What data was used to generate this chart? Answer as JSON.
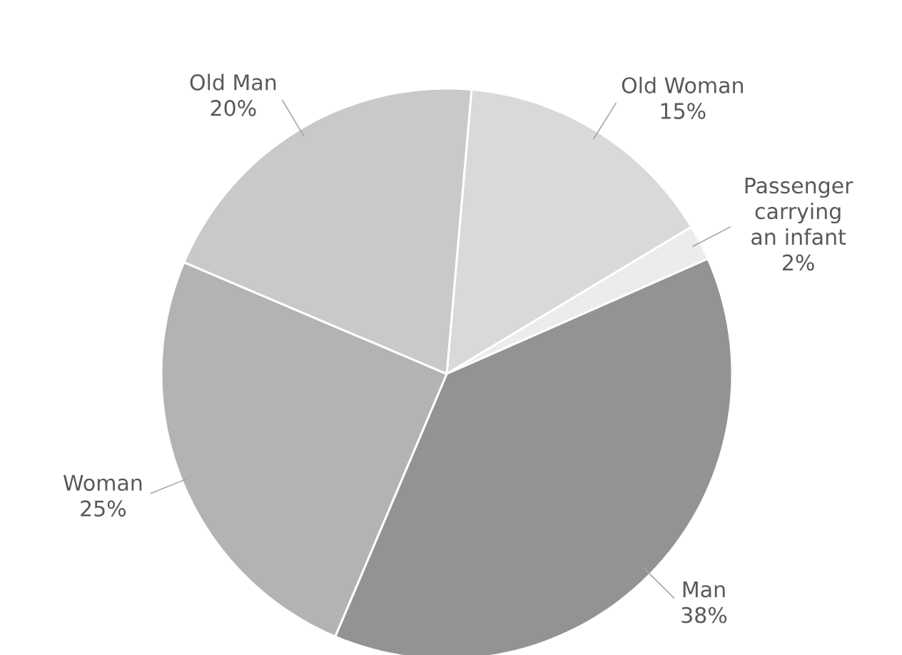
{
  "chart_data": {
    "type": "pie",
    "categories": [
      "Old Woman",
      "Passenger carrying an infant",
      "Man",
      "Woman",
      "Old Man"
    ],
    "values": [
      15,
      2,
      38,
      25,
      20
    ],
    "value_labels": [
      "15%",
      "2%",
      "38%",
      "25%",
      "20%"
    ],
    "colors": [
      "#d9d9d9",
      "#ececec",
      "#939393",
      "#b3b3b3",
      "#c9c9c9"
    ]
  }
}
